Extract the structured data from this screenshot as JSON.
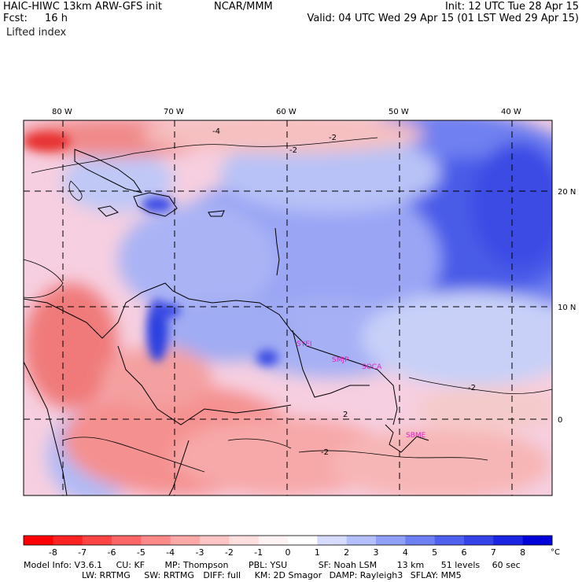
{
  "header": {
    "model": "HAIC-HIWC 13km ARW-GFS init",
    "org": "NCAR/MMM",
    "init": "Init: 12 UTC Tue 28 Apr 15",
    "fcst_label": "Fcst:",
    "fcst_value": "16 h",
    "valid": "Valid: 04 UTC Wed 29 Apr 15 (01 LST Wed 29 Apr 15)",
    "field": "Lifted index"
  },
  "map": {
    "lon_labels": [
      "80 W",
      "70 W",
      "60 W",
      "50 W",
      "40 W"
    ],
    "lat_labels": [
      "20 N",
      "10 N",
      "0"
    ],
    "contour_labels": [
      "-2",
      "-4",
      "-2",
      "2",
      "-2",
      "-2"
    ],
    "station_labels": [
      "SYEI",
      "SMJP",
      "SOCA",
      "SBME"
    ],
    "colors": {
      "neg_strong": "#e8202a",
      "neg_light": "#f7b8b8",
      "neutral": "#fbe9e9",
      "pos_light": "#c9d3f8",
      "pos_strong": "#2a3fe0",
      "station": "#e020c0"
    }
  },
  "colorbar": {
    "labels": [
      "-8",
      "-7",
      "-6",
      "-5",
      "-4",
      "-3",
      "-2",
      "-1",
      "0",
      "1",
      "2",
      "3",
      "4",
      "5",
      "6",
      "7",
      "8"
    ],
    "unit": "°C",
    "colors": [
      "#ff0000",
      "#ff2222",
      "#ff4444",
      "#ff6666",
      "#ff8888",
      "#ffa8a8",
      "#ffc4c4",
      "#ffdede",
      "#fff2f2",
      "#ffffff",
      "#d6dcff",
      "#b4bfff",
      "#909ff8",
      "#6f80f4",
      "#5060ee",
      "#3442e8",
      "#1a24e2",
      "#0000d8"
    ]
  },
  "footer": {
    "line1": [
      "Model Info: V3.6.1",
      "CU: KF",
      "MP: Thompson",
      "PBL: YSU",
      "SF: Noah LSM",
      "13 km",
      "51 levels",
      "60 sec"
    ],
    "line2": [
      "LW: RRTMG",
      "SW: RRTMG",
      "DIFF: full",
      "KM: 2D Smagor",
      "DAMP: Rayleigh3",
      "SFLAY: MM5"
    ]
  }
}
